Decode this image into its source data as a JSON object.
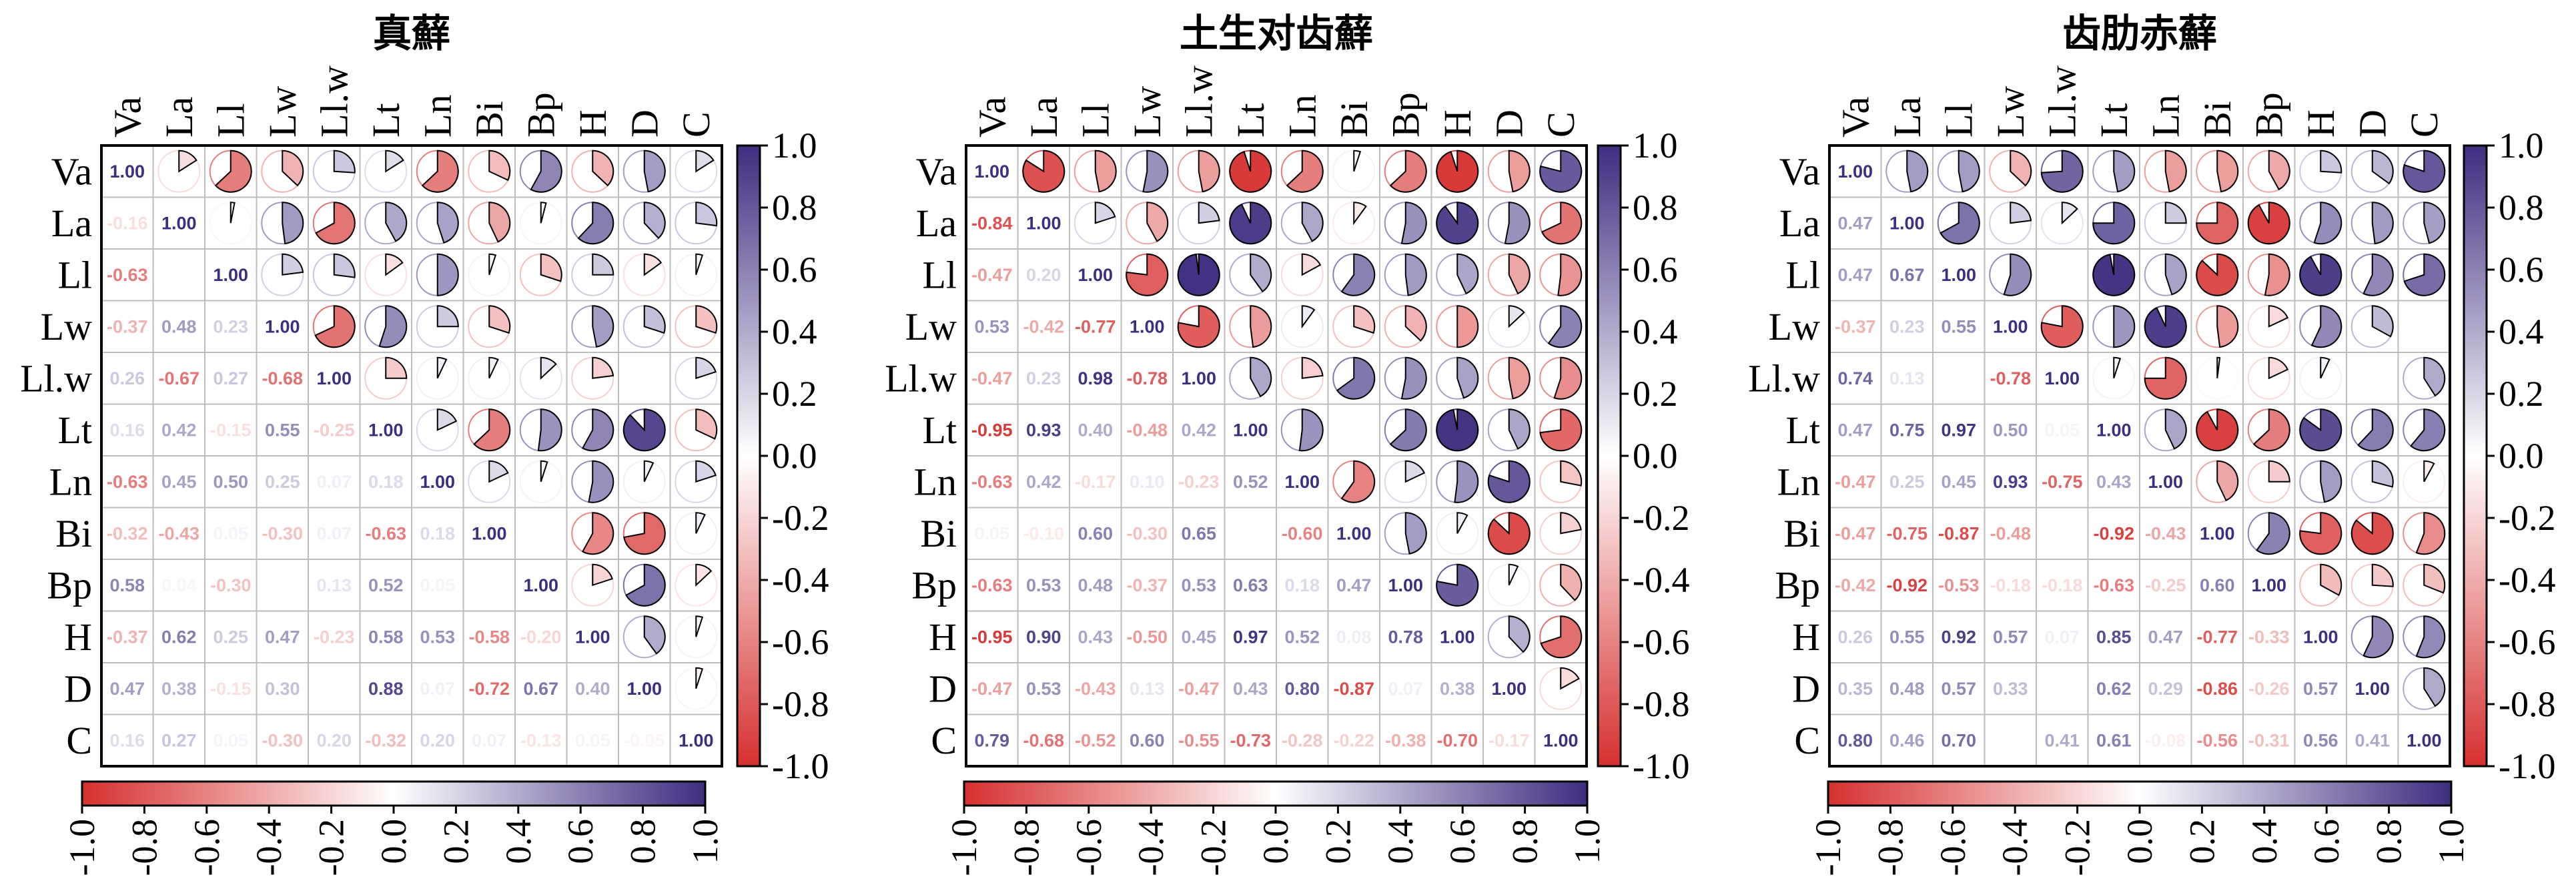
{
  "chart_data": [
    {
      "type": "heatmap",
      "title": "真蘚",
      "variables": [
        "Va",
        "La",
        "Ll",
        "Lw",
        "Ll.w",
        "Lt",
        "Ln",
        "Bi",
        "Bp",
        "H",
        "D",
        "C"
      ],
      "lower_triangle_values": [
        [
          1.0
        ],
        [
          -0.16,
          1.0
        ],
        [
          -0.63,
          0.03,
          1.0
        ],
        [
          -0.37,
          0.48,
          0.23,
          1.0
        ],
        [
          0.26,
          -0.67,
          0.27,
          -0.68,
          1.0
        ],
        [
          0.16,
          0.42,
          -0.15,
          0.55,
          -0.25,
          1.0
        ],
        [
          -0.63,
          0.45,
          0.5,
          0.25,
          0.07,
          0.18,
          1.0
        ],
        [
          -0.32,
          -0.43,
          0.05,
          -0.3,
          0.07,
          -0.63,
          0.18,
          1.0
        ],
        [
          0.58,
          0.04,
          -0.3,
          0.0,
          0.13,
          0.52,
          0.05,
          0.0,
          1.0
        ],
        [
          -0.37,
          0.62,
          0.25,
          0.47,
          -0.23,
          0.58,
          0.53,
          -0.58,
          -0.2,
          1.0
        ],
        [
          0.47,
          0.38,
          -0.15,
          0.3,
          0.0,
          0.88,
          0.07,
          -0.72,
          0.67,
          0.4,
          1.0
        ],
        [
          0.16,
          0.27,
          0.05,
          -0.3,
          0.2,
          -0.32,
          0.2,
          0.07,
          -0.13,
          0.05,
          -0.05,
          1.0
        ]
      ],
      "colorbar_range": [
        -1.0,
        1.0
      ],
      "colorbar_ticks": [
        "1.0",
        "0.8",
        "0.6",
        "0.4",
        "0.2",
        "0.0",
        "-0.2",
        "-0.4",
        "-0.6",
        "-0.8",
        "-1.0"
      ]
    },
    {
      "type": "heatmap",
      "title": "土生对齿蘚",
      "variables": [
        "Va",
        "La",
        "Ll",
        "Lw",
        "Ll.w",
        "Lt",
        "Ln",
        "Bi",
        "Bp",
        "H",
        "D",
        "C"
      ],
      "lower_triangle_values": [
        [
          1.0
        ],
        [
          -0.84,
          1.0
        ],
        [
          -0.47,
          0.2,
          1.0
        ],
        [
          0.53,
          -0.42,
          -0.77,
          1.0
        ],
        [
          -0.47,
          0.23,
          0.98,
          -0.78,
          1.0
        ],
        [
          -0.95,
          0.93,
          0.4,
          -0.48,
          0.42,
          1.0
        ],
        [
          -0.63,
          0.42,
          -0.17,
          0.1,
          -0.23,
          0.52,
          1.0
        ],
        [
          0.05,
          -0.1,
          0.6,
          -0.3,
          0.65,
          0.0,
          -0.6,
          1.0
        ],
        [
          -0.63,
          0.53,
          0.48,
          -0.37,
          0.53,
          0.63,
          0.18,
          0.47,
          1.0
        ],
        [
          -0.95,
          0.9,
          0.43,
          -0.5,
          0.45,
          0.97,
          0.52,
          0.08,
          0.78,
          1.0
        ],
        [
          -0.47,
          0.53,
          -0.43,
          0.13,
          -0.47,
          0.43,
          0.8,
          -0.87,
          0.07,
          0.38,
          1.0
        ],
        [
          0.79,
          -0.68,
          -0.52,
          0.6,
          -0.55,
          -0.73,
          -0.28,
          -0.22,
          -0.38,
          -0.7,
          -0.17,
          1.0
        ]
      ],
      "colorbar_range": [
        -1.0,
        1.0
      ],
      "colorbar_ticks": [
        "1.0",
        "0.8",
        "0.6",
        "0.4",
        "0.2",
        "0.0",
        "-0.2",
        "-0.4",
        "-0.6",
        "-0.8",
        "-1.0"
      ]
    },
    {
      "type": "heatmap",
      "title": "齿肋赤蘚",
      "variables": [
        "Va",
        "La",
        "Ll",
        "Lw",
        "Ll.w",
        "Lt",
        "Ln",
        "Bi",
        "Bp",
        "H",
        "D",
        "C"
      ],
      "lower_triangle_values": [
        [
          1.0
        ],
        [
          0.47,
          1.0
        ],
        [
          0.47,
          0.67,
          1.0
        ],
        [
          -0.37,
          0.23,
          0.55,
          1.0
        ],
        [
          0.74,
          0.13,
          0.0,
          -0.78,
          1.0
        ],
        [
          0.47,
          0.75,
          0.97,
          0.5,
          0.05,
          1.0
        ],
        [
          -0.47,
          0.25,
          0.45,
          0.93,
          -0.75,
          0.43,
          1.0
        ],
        [
          -0.47,
          -0.75,
          -0.87,
          -0.48,
          0.02,
          -0.92,
          -0.43,
          1.0
        ],
        [
          -0.42,
          -0.92,
          -0.53,
          -0.18,
          -0.18,
          -0.63,
          -0.25,
          0.6,
          1.0
        ],
        [
          0.26,
          0.55,
          0.92,
          0.57,
          0.07,
          0.85,
          0.47,
          -0.77,
          -0.33,
          1.0
        ],
        [
          0.35,
          0.48,
          0.57,
          0.33,
          0.0,
          0.62,
          0.29,
          -0.86,
          -0.26,
          0.57,
          1.0
        ],
        [
          0.8,
          0.46,
          0.7,
          0.0,
          0.41,
          0.61,
          -0.08,
          -0.56,
          -0.31,
          0.56,
          0.41,
          1.0
        ]
      ],
      "colorbar_range": [
        -1.0,
        1.0
      ],
      "colorbar_ticks": [
        "1.0",
        "0.8",
        "0.6",
        "0.4",
        "0.2",
        "0.0",
        "-0.2",
        "-0.4",
        "-0.6",
        "-0.8",
        "-1.0"
      ]
    }
  ],
  "colors": {
    "positive": "#3f2d80",
    "neutral": "#ffffff",
    "negative": "#d6302f",
    "grid": "#bdbdbd",
    "frame": "#000000"
  }
}
